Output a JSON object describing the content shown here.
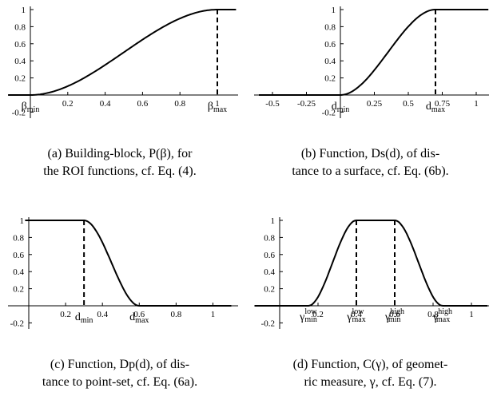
{
  "chart_data": [
    {
      "type": "line",
      "curve": "smoothstep",
      "xlim": [
        -0.2,
        1.1
      ],
      "ylim": [
        -0.2,
        1
      ],
      "x_ticks": [
        "0.2",
        "0.4",
        "0.6",
        "0.8",
        "1"
      ],
      "y_ticks": [
        "1",
        "0.8",
        "0.6",
        "0.4",
        "0.2",
        "-0.2"
      ],
      "y_tick_values": [
        1,
        0.8,
        0.6,
        0.4,
        0.2,
        -0.2
      ],
      "x_tick_values": [
        0.2,
        0.4,
        0.6,
        0.8,
        1
      ],
      "ramp": [
        0,
        1
      ],
      "points": [
        [
          0,
          0
        ],
        [
          0.25,
          0.156
        ],
        [
          0.5,
          0.5
        ],
        [
          0.75,
          0.844
        ],
        [
          1,
          1
        ],
        [
          1.1,
          1
        ]
      ],
      "markers": [
        {
          "x": 1,
          "style": "dashed"
        }
      ],
      "annotations": [
        {
          "id": "beta-min",
          "base": "β",
          "sub": "min",
          "x": 0
        },
        {
          "id": "beta-max",
          "base": "β",
          "sub": "max",
          "x": 1
        }
      ],
      "caption": [
        "(a) Building-block, P(β), for",
        "the ROI functions, cf. Eq. (4)."
      ]
    },
    {
      "type": "line",
      "curve": "smoothstep",
      "xlim": [
        -0.6,
        1.1
      ],
      "ylim": [
        -0.2,
        1
      ],
      "x_ticks": [
        "-0.5",
        "-0.25",
        "0.25",
        "0.5",
        "0.75",
        "1"
      ],
      "x_tick_values": [
        -0.5,
        -0.25,
        0.25,
        0.5,
        0.75,
        1
      ],
      "y_ticks": [
        "1",
        "0.8",
        "0.6",
        "0.4",
        "0.2",
        "-0.2"
      ],
      "y_tick_values": [
        1,
        0.8,
        0.6,
        0.4,
        0.2,
        -0.2
      ],
      "ramp": [
        0,
        0.7
      ],
      "points": [
        [
          -0.6,
          0
        ],
        [
          0,
          0
        ],
        [
          0.35,
          0.5
        ],
        [
          0.7,
          1
        ],
        [
          1.1,
          1
        ]
      ],
      "markers": [
        {
          "x": 0.7,
          "style": "dashed"
        }
      ],
      "annotations": [
        {
          "id": "dmin",
          "base": "d",
          "sub": "min",
          "x": 0
        },
        {
          "id": "dmax",
          "base": "d",
          "sub": "max",
          "x": 0.7
        }
      ],
      "caption": [
        "(b) Function, Ds(d), of dis-",
        "tance to a surface, cf. Eq. (6b)."
      ]
    },
    {
      "type": "line",
      "curve": "smoothstep-descending",
      "xlim": [
        -0.02,
        1.1
      ],
      "ylim": [
        -0.2,
        1
      ],
      "x_ticks": [
        "0.2",
        "0.4",
        "0.6",
        "0.8",
        "1"
      ],
      "x_tick_values": [
        0.2,
        0.4,
        0.6,
        0.8,
        1
      ],
      "y_ticks": [
        "1",
        "0.8",
        "0.6",
        "0.4",
        "0.2",
        "-0.2"
      ],
      "y_tick_values": [
        1,
        0.8,
        0.6,
        0.4,
        0.2,
        -0.2
      ],
      "ramp": [
        0.3,
        0.6
      ],
      "points": [
        [
          -0.02,
          1
        ],
        [
          0.3,
          1
        ],
        [
          0.45,
          0.5
        ],
        [
          0.6,
          0
        ],
        [
          1.1,
          0
        ]
      ],
      "markers": [
        {
          "x": 0.3,
          "style": "dashed"
        }
      ],
      "annotations": [
        {
          "id": "dmin",
          "base": "d",
          "sub": "min",
          "x": 0.3
        },
        {
          "id": "dmax",
          "base": "d",
          "sub": "max",
          "x": 0.6
        }
      ],
      "caption": [
        "(c) Function, Dp(d), of dis-",
        "tance to point-set, cf. Eq. (6a)."
      ]
    },
    {
      "type": "line",
      "curve": "smoothstep-bump",
      "xlim": [
        -0.22,
        1.1
      ],
      "ylim": [
        -0.2,
        1
      ],
      "x_ticks": [
        "0.2",
        "0.4",
        "0.6",
        "0.8",
        "1"
      ],
      "x_tick_values": [
        0.2,
        0.4,
        0.6,
        0.8,
        1
      ],
      "y_ticks": [
        "1",
        "0.8",
        "0.6",
        "0.4",
        "0.2",
        "-0.2"
      ],
      "y_tick_values": [
        1,
        0.8,
        0.6,
        0.4,
        0.2,
        -0.2
      ],
      "ramp_up": [
        0.15,
        0.4
      ],
      "ramp_down": [
        0.6,
        0.85
      ],
      "points": [
        [
          -0.22,
          0
        ],
        [
          0.15,
          0
        ],
        [
          0.4,
          1
        ],
        [
          0.6,
          1
        ],
        [
          0.85,
          0
        ],
        [
          1.1,
          0
        ]
      ],
      "markers": [
        {
          "x": 0.4,
          "style": "dashed"
        },
        {
          "x": 0.6,
          "style": "dashed"
        }
      ],
      "annotations": [
        {
          "id": "gmin-low",
          "base": "γ",
          "sub": "min",
          "sup": "low",
          "x": 0.15
        },
        {
          "id": "gmax-low",
          "base": "γ",
          "sub": "max",
          "sup": "low",
          "x": 0.4
        },
        {
          "id": "gmin-high",
          "base": "γ",
          "sub": "min",
          "sup": "high",
          "x": 0.6
        },
        {
          "id": "gmax-high",
          "base": "γ",
          "sub": "max",
          "sup": "high",
          "x": 0.85
        }
      ],
      "caption": [
        "(d) Function, C(γ), of geomet-",
        "ric measure, γ, cf. Eq. (7)."
      ]
    }
  ]
}
